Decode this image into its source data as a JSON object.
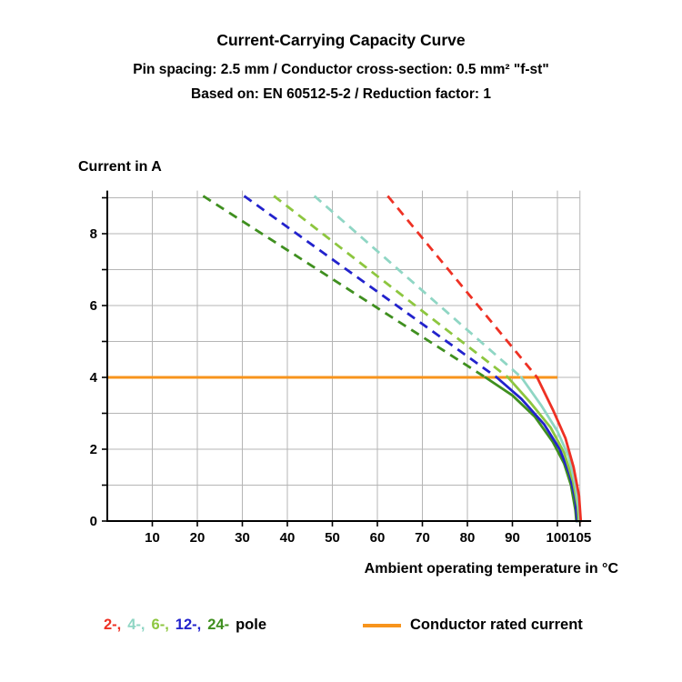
{
  "header": {
    "title": "Current-Carrying Capacity Curve",
    "subtitle_spec": "Pin spacing: 2.5 mm / Conductor cross-section: 0.5 mm² \"f-st\"",
    "subtitle_basis": "Based on: EN 60512-5-2 / Reduction factor: 1"
  },
  "legend": {
    "poles": [
      {
        "label": "2-,",
        "color": "#ee3124"
      },
      {
        "label": "4-,",
        "color": "#8fd6c4"
      },
      {
        "label": "6-,",
        "color": "#8dc63f"
      },
      {
        "label": "12-,",
        "color": "#2222cc"
      },
      {
        "label": "24-",
        "color": "#3f8f1f"
      }
    ],
    "pole_word": "pole",
    "pole_word_color": "#000000"
  },
  "chart_data": {
    "type": "line",
    "title": "Current-Carrying Capacity Curve",
    "xlabel": "Ambient operating temperature in °C",
    "ylabel": "Current in A",
    "xlim": [
      0,
      107.5
    ],
    "ylim": [
      0,
      9.2
    ],
    "x_ticks": [
      10,
      20,
      30,
      40,
      50,
      60,
      70,
      80,
      90,
      100,
      105
    ],
    "x_gridlines": [
      10,
      20,
      30,
      40,
      50,
      60,
      70,
      80,
      90,
      100,
      105
    ],
    "x_grid_end": 105,
    "y_gridlines": [
      1,
      2,
      3,
      4,
      5,
      6,
      7,
      8,
      9
    ],
    "y_ticks": [
      0,
      1,
      2,
      3,
      4,
      5,
      6,
      7,
      8,
      9
    ],
    "y_tick_labels": [
      0,
      2,
      4,
      6,
      8
    ],
    "grid_on": true,
    "grid_color": "#b5b5b5",
    "axis_color": "#000000",
    "rated_line": {
      "label": "Conductor rated current",
      "value": 4,
      "x_start": 0,
      "x_end": 100,
      "color": "#f7941d"
    },
    "series": [
      {
        "name": "24-pole",
        "color": "#3f8f1f",
        "dashed": [
          [
            21.3,
            9.05
          ],
          [
            84,
            4.0
          ]
        ],
        "solid": [
          [
            84,
            4.0
          ],
          [
            90,
            3.5
          ],
          [
            95,
            2.9
          ],
          [
            99,
            2.2
          ],
          [
            101.5,
            1.6
          ],
          [
            103,
            1.0
          ],
          [
            104,
            0.3
          ],
          [
            104.2,
            0
          ]
        ]
      },
      {
        "name": "12-pole",
        "color": "#2222cc",
        "dashed": [
          [
            30.4,
            9.05
          ],
          [
            86.5,
            4.0
          ]
        ],
        "solid": [
          [
            86.5,
            4.0
          ],
          [
            92,
            3.4
          ],
          [
            97,
            2.7
          ],
          [
            100.5,
            2.0
          ],
          [
            102.7,
            1.3
          ],
          [
            104,
            0.6
          ],
          [
            104.4,
            0
          ]
        ]
      },
      {
        "name": "6-pole",
        "color": "#8dc63f",
        "dashed": [
          [
            37,
            9.05
          ],
          [
            89,
            4.0
          ]
        ],
        "solid": [
          [
            89,
            4.0
          ],
          [
            94,
            3.3
          ],
          [
            98.5,
            2.6
          ],
          [
            101.5,
            1.9
          ],
          [
            103.5,
            1.1
          ],
          [
            104.5,
            0.4
          ],
          [
            104.7,
            0
          ]
        ]
      },
      {
        "name": "4-pole",
        "color": "#8fd6c4",
        "dashed": [
          [
            46,
            9.05
          ],
          [
            92,
            4.0
          ]
        ],
        "solid": [
          [
            92,
            4.0
          ],
          [
            96.5,
            3.2
          ],
          [
            100,
            2.5
          ],
          [
            102.5,
            1.8
          ],
          [
            104,
            1.0
          ],
          [
            104.9,
            0.2
          ],
          [
            105,
            0
          ]
        ]
      },
      {
        "name": "2-pole",
        "color": "#ee3124",
        "dashed": [
          [
            62.3,
            9.05
          ],
          [
            95.5,
            4.0
          ]
        ],
        "solid": [
          [
            95.5,
            4.0
          ],
          [
            99,
            3.1
          ],
          [
            101.8,
            2.3
          ],
          [
            103.6,
            1.5
          ],
          [
            104.8,
            0.7
          ],
          [
            105.2,
            0
          ]
        ]
      }
    ]
  }
}
